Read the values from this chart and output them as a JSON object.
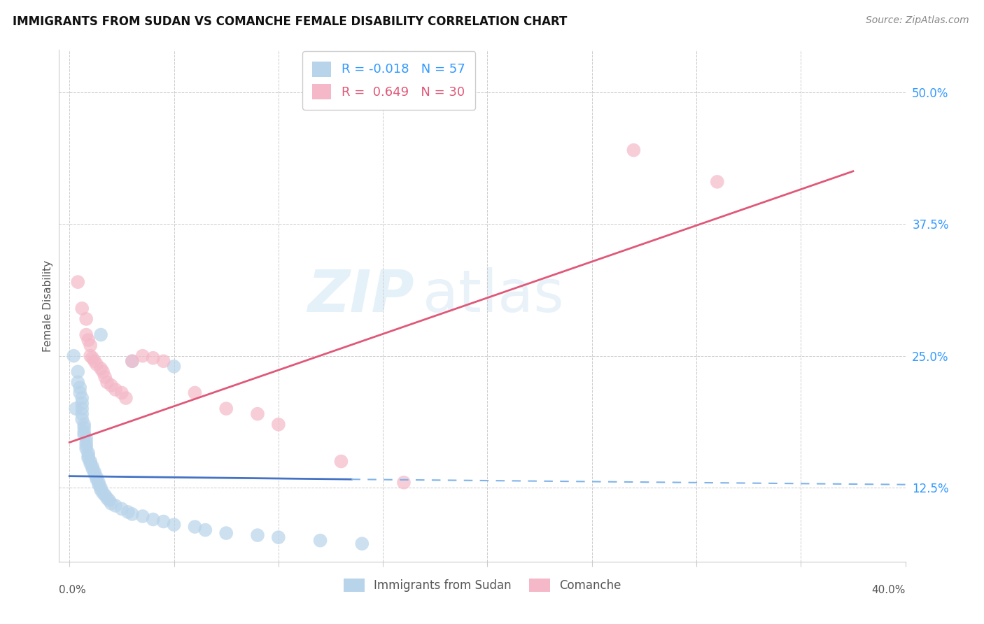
{
  "title": "IMMIGRANTS FROM SUDAN VS COMANCHE FEMALE DISABILITY CORRELATION CHART",
  "source": "Source: ZipAtlas.com",
  "ylabel": "Female Disability",
  "ytick_vals": [
    0.125,
    0.25,
    0.375,
    0.5
  ],
  "ytick_labels": [
    "12.5%",
    "25.0%",
    "37.5%",
    "50.0%"
  ],
  "xtick_vals": [
    0.0,
    0.05,
    0.1,
    0.15,
    0.2,
    0.25,
    0.3,
    0.35,
    0.4
  ],
  "legend_entries": [
    {
      "label": "Immigrants from Sudan",
      "R": "-0.018",
      "N": "57",
      "face_color": "#b8d4ea",
      "edge_color": "#5b9bd5"
    },
    {
      "label": "Comanche",
      "R": "0.649",
      "N": "30",
      "face_color": "#f4b8c8",
      "edge_color": "#e05070"
    }
  ],
  "watermark": "ZIPatlas",
  "sudan_color": "#b8d4ea",
  "comanche_color": "#f4b8c8",
  "sudan_line_color": "#4472c4",
  "comanche_line_color": "#e05878",
  "sudan_scatter": [
    [
      0.002,
      0.25
    ],
    [
      0.003,
      0.2
    ],
    [
      0.004,
      0.235
    ],
    [
      0.004,
      0.225
    ],
    [
      0.005,
      0.22
    ],
    [
      0.005,
      0.215
    ],
    [
      0.006,
      0.21
    ],
    [
      0.006,
      0.205
    ],
    [
      0.006,
      0.2
    ],
    [
      0.006,
      0.195
    ],
    [
      0.006,
      0.19
    ],
    [
      0.007,
      0.185
    ],
    [
      0.007,
      0.182
    ],
    [
      0.007,
      0.178
    ],
    [
      0.007,
      0.175
    ],
    [
      0.008,
      0.172
    ],
    [
      0.008,
      0.168
    ],
    [
      0.008,
      0.165
    ],
    [
      0.008,
      0.162
    ],
    [
      0.009,
      0.158
    ],
    [
      0.009,
      0.155
    ],
    [
      0.009,
      0.153
    ],
    [
      0.01,
      0.15
    ],
    [
      0.01,
      0.148
    ],
    [
      0.011,
      0.145
    ],
    [
      0.011,
      0.143
    ],
    [
      0.012,
      0.14
    ],
    [
      0.012,
      0.138
    ],
    [
      0.013,
      0.135
    ],
    [
      0.013,
      0.133
    ],
    [
      0.014,
      0.13
    ],
    [
      0.014,
      0.128
    ],
    [
      0.015,
      0.125
    ],
    [
      0.015,
      0.123
    ],
    [
      0.016,
      0.12
    ],
    [
      0.017,
      0.118
    ],
    [
      0.018,
      0.115
    ],
    [
      0.019,
      0.113
    ],
    [
      0.02,
      0.11
    ],
    [
      0.022,
      0.108
    ],
    [
      0.025,
      0.105
    ],
    [
      0.028,
      0.102
    ],
    [
      0.03,
      0.1
    ],
    [
      0.035,
      0.098
    ],
    [
      0.04,
      0.095
    ],
    [
      0.045,
      0.093
    ],
    [
      0.05,
      0.09
    ],
    [
      0.06,
      0.088
    ],
    [
      0.065,
      0.085
    ],
    [
      0.075,
      0.082
    ],
    [
      0.09,
      0.08
    ],
    [
      0.1,
      0.078
    ],
    [
      0.12,
      0.075
    ],
    [
      0.14,
      0.072
    ],
    [
      0.015,
      0.27
    ],
    [
      0.03,
      0.245
    ],
    [
      0.05,
      0.24
    ]
  ],
  "comanche_scatter": [
    [
      0.004,
      0.32
    ],
    [
      0.006,
      0.295
    ],
    [
      0.008,
      0.285
    ],
    [
      0.008,
      0.27
    ],
    [
      0.009,
      0.265
    ],
    [
      0.01,
      0.26
    ],
    [
      0.01,
      0.25
    ],
    [
      0.011,
      0.248
    ],
    [
      0.012,
      0.245
    ],
    [
      0.013,
      0.242
    ],
    [
      0.015,
      0.238
    ],
    [
      0.016,
      0.235
    ],
    [
      0.017,
      0.23
    ],
    [
      0.018,
      0.225
    ],
    [
      0.02,
      0.222
    ],
    [
      0.022,
      0.218
    ],
    [
      0.025,
      0.215
    ],
    [
      0.027,
      0.21
    ],
    [
      0.03,
      0.245
    ],
    [
      0.035,
      0.25
    ],
    [
      0.04,
      0.248
    ],
    [
      0.045,
      0.245
    ],
    [
      0.06,
      0.215
    ],
    [
      0.075,
      0.2
    ],
    [
      0.09,
      0.195
    ],
    [
      0.1,
      0.185
    ],
    [
      0.13,
      0.15
    ],
    [
      0.16,
      0.13
    ],
    [
      0.27,
      0.445
    ],
    [
      0.31,
      0.415
    ]
  ],
  "xlim": [
    -0.005,
    0.4
  ],
  "ylim": [
    0.055,
    0.54
  ],
  "sudan_line_solid": {
    "x0": 0.0,
    "x1": 0.135,
    "y0": 0.136,
    "y1": 0.133
  },
  "sudan_line_dash": {
    "x0": 0.135,
    "x1": 0.4,
    "y0": 0.133,
    "y1": 0.128
  },
  "comanche_line": {
    "x0": 0.0,
    "x1": 0.375,
    "y0": 0.168,
    "y1": 0.425
  }
}
